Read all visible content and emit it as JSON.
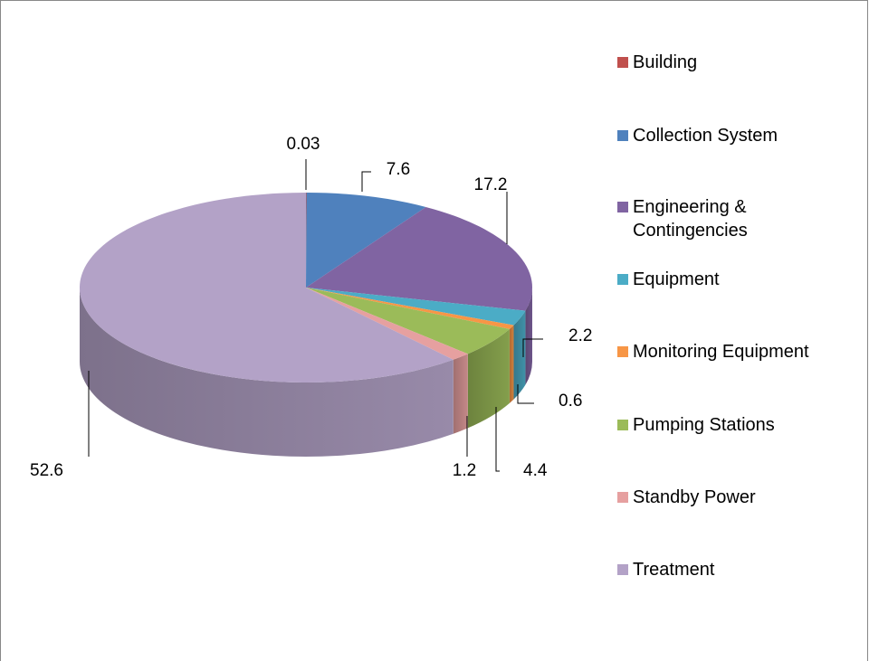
{
  "chart_data": {
    "type": "pie",
    "categories": [
      "Building",
      "Collection System",
      "Engineering & Contingencies",
      "Equipment",
      "Monitoring Equipment",
      "Pumping Stations",
      "Standby Power",
      "Treatment"
    ],
    "values": [
      0.03,
      7.6,
      17.2,
      2.2,
      0.6,
      4.4,
      1.2,
      52.6
    ],
    "colors": [
      "#c0504d",
      "#4f81bd",
      "#8064a2",
      "#4bacc6",
      "#f79646",
      "#9bbb59",
      "#e6a0a0",
      "#b3a2c7"
    ],
    "legend": "right"
  }
}
